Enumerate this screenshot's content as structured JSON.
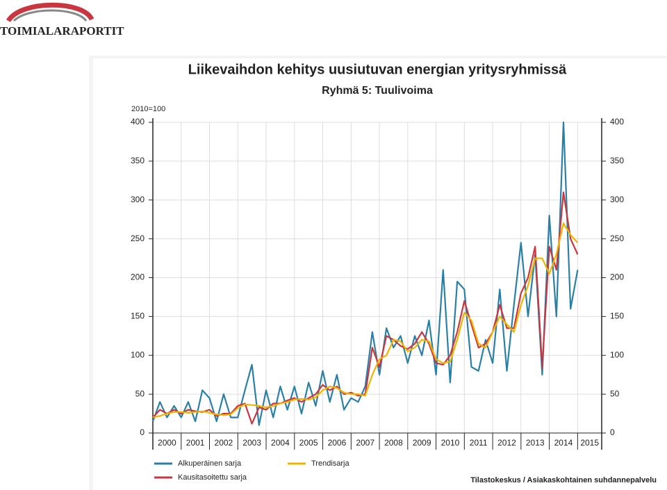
{
  "logo": "TOIMIALARAPORTIT",
  "chart_data": {
    "type": "line",
    "title": "Liikevaihdon kehitys uusiutuvan energian yritysryhmissä",
    "subtitle": "Ryhmä 5: Tuulivoima",
    "y_label": "2010=100",
    "source": "Tilastokeskus / Asiakaskohtainen suhdannepalvelu",
    "categories": [
      "2000",
      "2001",
      "2002",
      "2003",
      "2004",
      "2005",
      "2006",
      "2007",
      "2008",
      "2009",
      "2010",
      "2011",
      "2012",
      "2013",
      "2014",
      "2015"
    ],
    "x": [
      2000,
      2000.25,
      2000.5,
      2000.75,
      2001,
      2001.25,
      2001.5,
      2001.75,
      2002,
      2002.25,
      2002.5,
      2002.75,
      2003,
      2003.25,
      2003.5,
      2003.75,
      2004,
      2004.25,
      2004.5,
      2004.75,
      2005,
      2005.25,
      2005.5,
      2005.75,
      2006,
      2006.25,
      2006.5,
      2006.75,
      2007,
      2007.25,
      2007.5,
      2007.75,
      2008,
      2008.25,
      2008.5,
      2008.75,
      2009,
      2009.25,
      2009.5,
      2009.75,
      2010,
      2010.25,
      2010.5,
      2010.75,
      2011,
      2011.25,
      2011.5,
      2011.75,
      2012,
      2012.25,
      2012.5,
      2012.75,
      2013,
      2013.25,
      2013.5,
      2013.75,
      2014,
      2014.25,
      2014.5,
      2014.75,
      2015
    ],
    "series": [
      {
        "name": "Alkuperäinen sarja",
        "color": "#2a7fa6",
        "values": [
          15,
          40,
          20,
          35,
          20,
          40,
          15,
          55,
          45,
          15,
          50,
          20,
          20,
          55,
          88,
          10,
          55,
          20,
          60,
          30,
          60,
          25,
          65,
          35,
          80,
          40,
          75,
          30,
          45,
          40,
          60,
          130,
          75,
          135,
          110,
          125,
          90,
          125,
          100,
          145,
          75,
          210,
          65,
          195,
          185,
          85,
          80,
          120,
          90,
          185,
          80,
          165,
          245,
          150,
          230,
          75,
          280,
          150,
          400,
          160,
          210
        ]
      },
      {
        "name": "Kausitasoitettu sarja",
        "color": "#c8373f",
        "values": [
          20,
          30,
          25,
          30,
          25,
          30,
          28,
          27,
          30,
          22,
          25,
          25,
          35,
          38,
          12,
          33,
          30,
          38,
          38,
          42,
          45,
          40,
          45,
          50,
          62,
          55,
          60,
          50,
          52,
          48,
          50,
          110,
          85,
          125,
          120,
          112,
          108,
          115,
          130,
          115,
          90,
          88,
          100,
          130,
          170,
          140,
          110,
          115,
          130,
          165,
          135,
          135,
          180,
          200,
          240,
          85,
          240,
          210,
          310,
          250,
          230
        ]
      },
      {
        "name": "Trendisarja",
        "color": "#f0b400",
        "values": [
          20,
          22,
          25,
          27,
          27,
          26,
          27,
          28,
          26,
          24,
          23,
          24,
          32,
          37,
          36,
          35,
          33,
          35,
          38,
          40,
          43,
          44,
          43,
          46,
          55,
          60,
          58,
          52,
          50,
          50,
          48,
          75,
          95,
          100,
          120,
          118,
          105,
          110,
          120,
          118,
          95,
          90,
          92,
          120,
          155,
          145,
          115,
          110,
          130,
          150,
          140,
          130,
          165,
          190,
          225,
          225,
          205,
          230,
          270,
          255,
          245
        ]
      }
    ],
    "xlim": [
      2000,
      2015.85
    ],
    "xticks": [
      2001,
      2002,
      2003,
      2004,
      2005,
      2006,
      2007,
      2008,
      2009,
      2010,
      2011,
      2012,
      2013,
      2014,
      2015
    ],
    "ylim": [
      0,
      400
    ],
    "yticks": [
      0,
      50,
      100,
      150,
      200,
      250,
      300,
      350,
      400
    ],
    "y2lim": [
      0,
      400
    ],
    "y2ticks": [
      0,
      50,
      100,
      150,
      200,
      250,
      300,
      350,
      400
    ],
    "grid": true
  }
}
